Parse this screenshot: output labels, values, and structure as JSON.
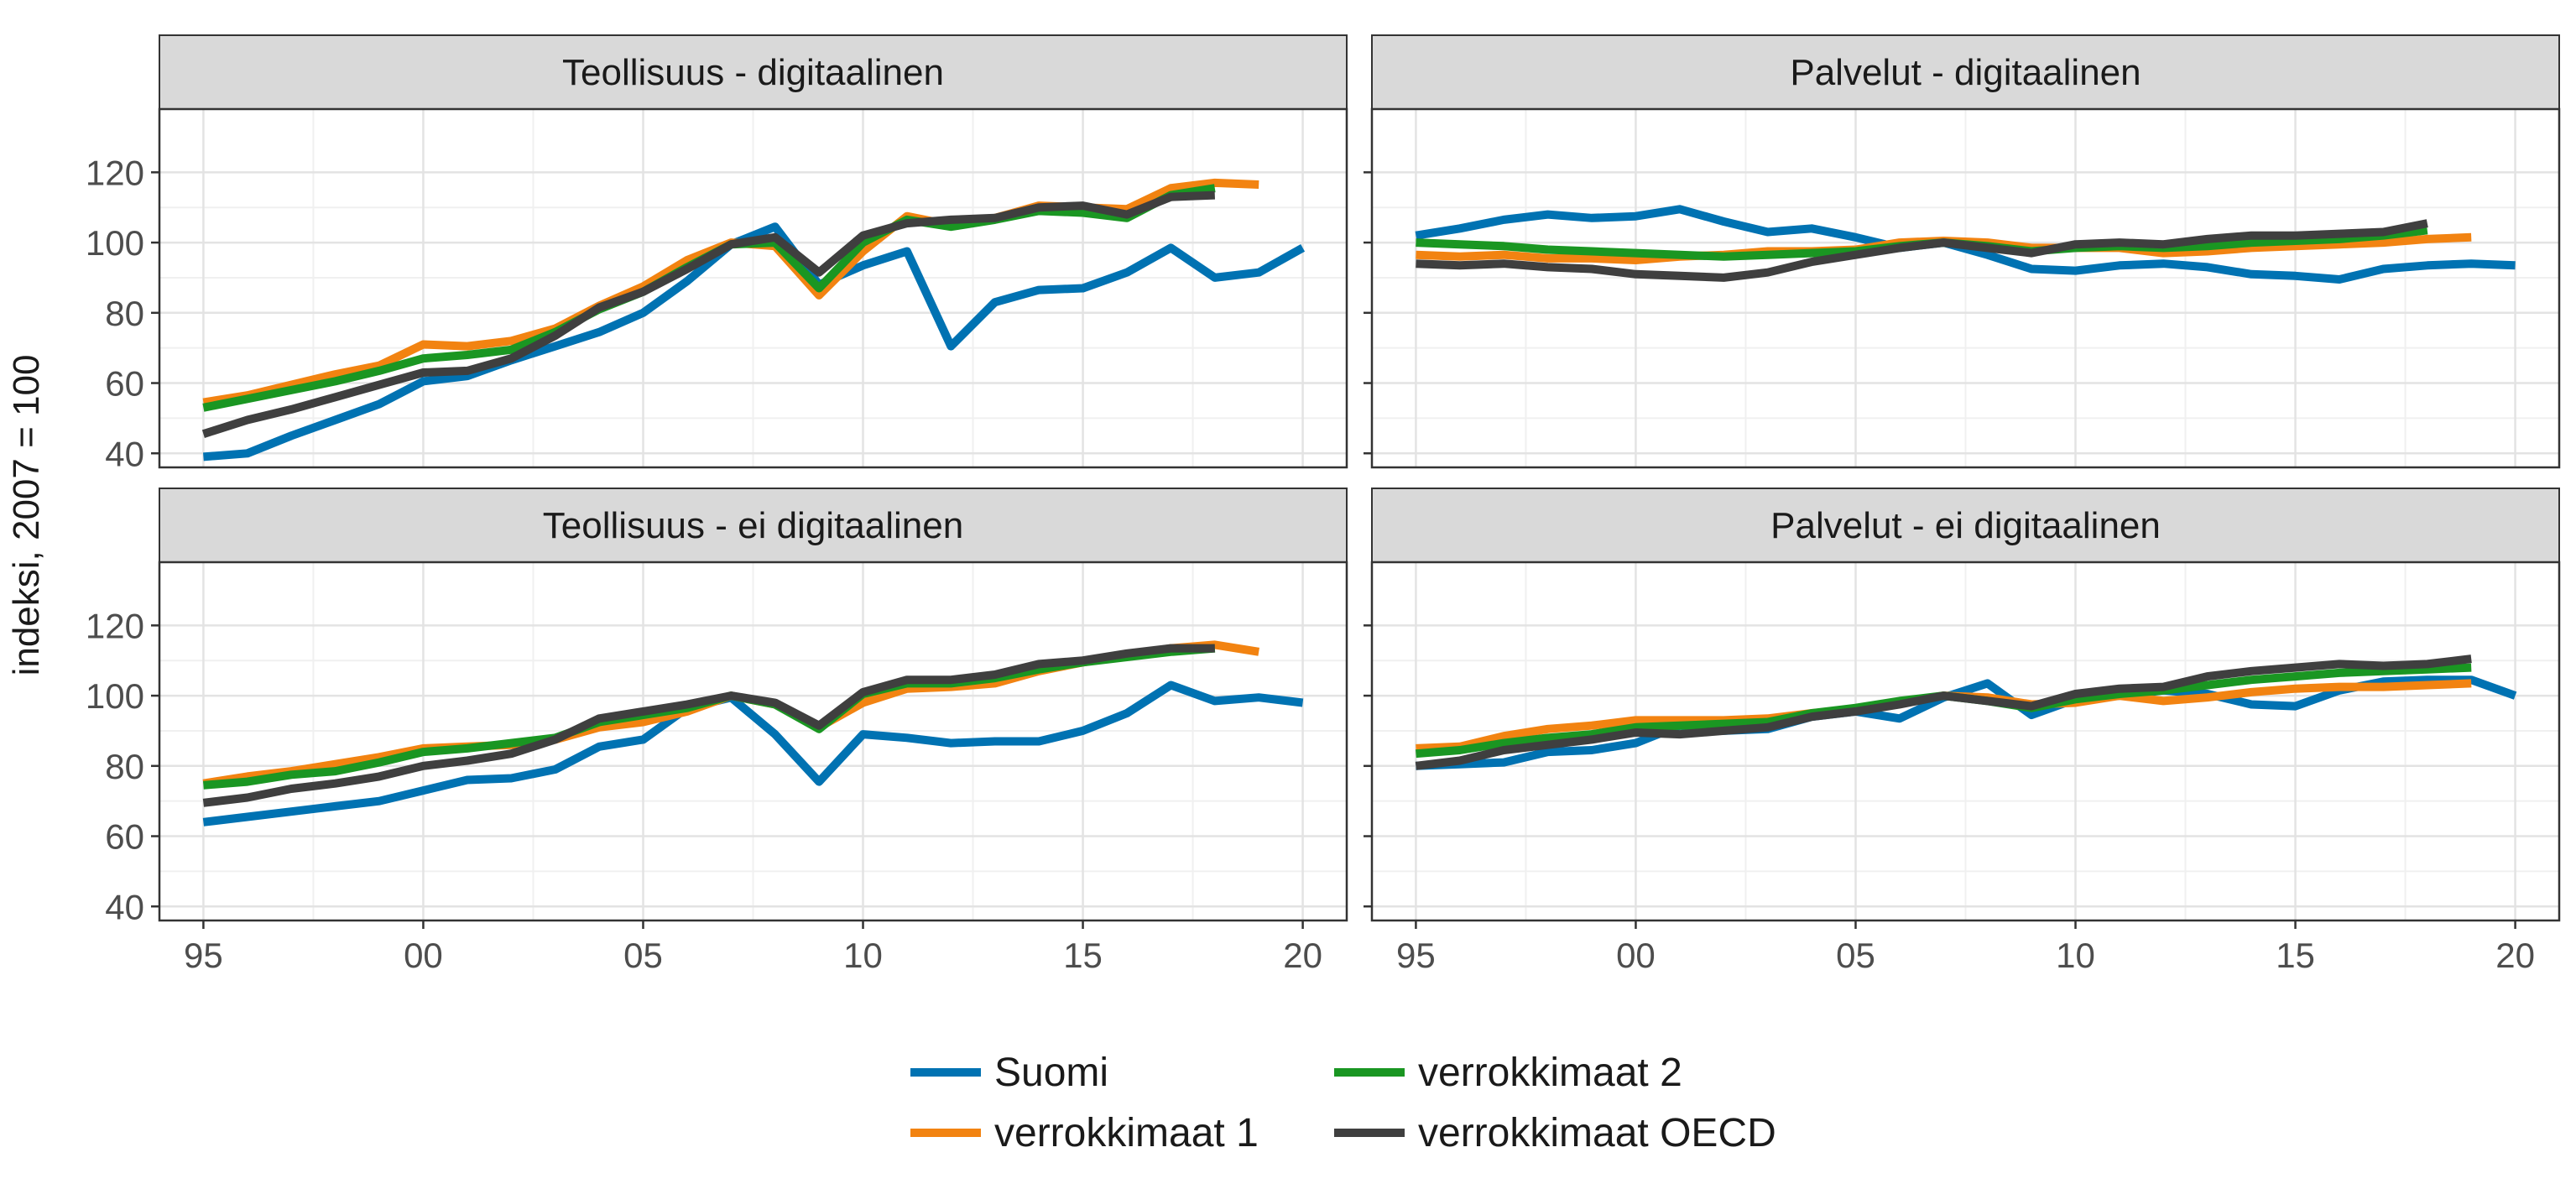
{
  "figure": {
    "ylabel": "indeksi, 2007 = 100",
    "legend": [
      {
        "label": "Suomi",
        "color": "#0072B2"
      },
      {
        "label": "verrokkimaat 1",
        "color": "#F28311"
      },
      {
        "label": "verrokkimaat 2",
        "color": "#1A9622"
      },
      {
        "label": "verrokkimaat OECD",
        "color": "#3F3F3F"
      }
    ]
  },
  "chart_data": [
    {
      "type": "line",
      "title": "Teollisuus - digitaalinen",
      "xlim": [
        1994,
        2021
      ],
      "ylim": [
        36,
        138
      ],
      "xticks": [
        1995,
        2000,
        2005,
        2010,
        2015,
        2020
      ],
      "xtick_labels": [
        "95",
        "00",
        "05",
        "10",
        "15",
        "20"
      ],
      "yticks": [
        40,
        60,
        80,
        100,
        120
      ],
      "ytick_labels": [
        "40",
        "60",
        "80",
        "100",
        "120"
      ],
      "grid": true,
      "legend_position": "bottom",
      "series": [
        {
          "name": "Suomi",
          "color": "#0072B2",
          "x": [
            1995,
            1996,
            1997,
            1998,
            1999,
            2000,
            2001,
            2002,
            2003,
            2004,
            2005,
            2006,
            2007,
            2008,
            2009,
            2010,
            2011,
            2012,
            2013,
            2014,
            2015,
            2016,
            2017,
            2018,
            2019,
            2020
          ],
          "y": [
            39,
            40,
            45,
            49.5,
            54,
            60.5,
            62,
            66.5,
            70.5,
            74.5,
            80,
            89,
            99.5,
            104.5,
            88,
            93.5,
            97.5,
            70.5,
            83,
            86.5,
            87,
            91.5,
            98.5,
            90,
            91.5,
            98.5
          ]
        },
        {
          "name": "verrokkimaat 1",
          "color": "#F28311",
          "x": [
            1995,
            1996,
            1997,
            1998,
            1999,
            2000,
            2001,
            2002,
            2003,
            2004,
            2005,
            2006,
            2007,
            2008,
            2009,
            2010,
            2011,
            2012,
            2013,
            2014,
            2015,
            2016,
            2017,
            2018,
            2019
          ],
          "y": [
            54.5,
            56.5,
            59.5,
            62.5,
            65,
            71,
            70.5,
            72,
            75.5,
            82,
            87.5,
            95,
            100,
            99,
            85,
            97.5,
            107.5,
            105,
            107,
            110.5,
            110,
            109.5,
            115.5,
            117,
            116.5
          ]
        },
        {
          "name": "verrokkimaat 2",
          "color": "#1A9622",
          "x": [
            1995,
            1996,
            1997,
            1998,
            1999,
            2000,
            2001,
            2002,
            2003,
            2004,
            2005,
            2006,
            2007,
            2008,
            2009,
            2010,
            2011,
            2012,
            2013,
            2014,
            2015,
            2016,
            2017,
            2018
          ],
          "y": [
            53,
            55.5,
            58,
            60.5,
            63.5,
            67,
            68,
            69.5,
            74.5,
            81,
            86,
            93,
            99.5,
            100,
            87,
            100,
            106.5,
            104.5,
            106.5,
            109,
            108.5,
            107,
            113.5,
            115.5
          ]
        },
        {
          "name": "verrokkimaat OECD",
          "color": "#3F3F3F",
          "x": [
            1995,
            1996,
            1997,
            1998,
            1999,
            2000,
            2001,
            2002,
            2003,
            2004,
            2005,
            2006,
            2007,
            2008,
            2009,
            2010,
            2011,
            2012,
            2013,
            2014,
            2015,
            2016,
            2017,
            2018
          ],
          "y": [
            45.5,
            49.5,
            52.5,
            56,
            59.5,
            63,
            63.5,
            67,
            73.5,
            81.5,
            86,
            92.5,
            99.5,
            101.5,
            91.5,
            102,
            105.5,
            106.5,
            107,
            110,
            110.5,
            108,
            113,
            113.5
          ]
        }
      ]
    },
    {
      "type": "line",
      "title": "Palvelut - digitaalinen",
      "xlim": [
        1994,
        2021
      ],
      "ylim": [
        36,
        138
      ],
      "xticks": [
        1995,
        2000,
        2005,
        2010,
        2015,
        2020
      ],
      "xtick_labels": [
        "95",
        "00",
        "05",
        "10",
        "15",
        "20"
      ],
      "yticks": [
        40,
        60,
        80,
        100,
        120
      ],
      "grid": true,
      "legend_position": "bottom",
      "series": [
        {
          "name": "Suomi",
          "color": "#0072B2",
          "x": [
            1995,
            1996,
            1997,
            1998,
            1999,
            2000,
            2001,
            2002,
            2003,
            2004,
            2005,
            2006,
            2007,
            2008,
            2009,
            2010,
            2011,
            2012,
            2013,
            2014,
            2015,
            2016,
            2017,
            2018,
            2019,
            2020
          ],
          "y": [
            102,
            104,
            106.5,
            108,
            107,
            107.5,
            109.5,
            106,
            103,
            104,
            101.5,
            98.5,
            100,
            96.5,
            92.5,
            92,
            93.5,
            94,
            93,
            91,
            90.5,
            89.5,
            92.5,
            93.5,
            94,
            93.5
          ]
        },
        {
          "name": "verrokkimaat 1",
          "color": "#F28311",
          "x": [
            1995,
            1996,
            1997,
            1998,
            1999,
            2000,
            2001,
            2002,
            2003,
            2004,
            2005,
            2006,
            2007,
            2008,
            2009,
            2010,
            2011,
            2012,
            2013,
            2014,
            2015,
            2016,
            2017,
            2018,
            2019
          ],
          "y": [
            96.5,
            96,
            96.5,
            95.5,
            95.5,
            95,
            96,
            96.5,
            97.5,
            97.5,
            98,
            100,
            100.5,
            100,
            98.5,
            98.5,
            98.5,
            97,
            97.5,
            98.5,
            99,
            99.5,
            100,
            101,
            101.5
          ]
        },
        {
          "name": "verrokkimaat 2",
          "color": "#1A9622",
          "x": [
            1995,
            1996,
            1997,
            1998,
            1999,
            2000,
            2001,
            2002,
            2003,
            2004,
            2005,
            2006,
            2007,
            2008,
            2009,
            2010,
            2011,
            2012,
            2013,
            2014,
            2015,
            2016,
            2017,
            2018
          ],
          "y": [
            100,
            99.5,
            99,
            98,
            97.5,
            97,
            96.5,
            96,
            96.5,
            97,
            97.5,
            99,
            100,
            99,
            97.5,
            98.5,
            99,
            98.5,
            99,
            100,
            100.5,
            101,
            102,
            103.5
          ]
        },
        {
          "name": "verrokkimaat OECD",
          "color": "#3F3F3F",
          "x": [
            1995,
            1996,
            1997,
            1998,
            1999,
            2000,
            2001,
            2002,
            2003,
            2004,
            2005,
            2006,
            2007,
            2008,
            2009,
            2010,
            2011,
            2012,
            2013,
            2014,
            2015,
            2016,
            2017,
            2018
          ],
          "y": [
            94,
            93.5,
            94,
            93,
            92.5,
            91,
            90.5,
            90,
            91.5,
            94.5,
            96.5,
            98.5,
            100,
            98.5,
            97,
            99.5,
            100,
            99.5,
            101,
            102,
            102,
            102.5,
            103,
            105.5
          ]
        }
      ]
    },
    {
      "type": "line",
      "title": "Teollisuus - ei digitaalinen",
      "xlim": [
        1994,
        2021
      ],
      "ylim": [
        36,
        138
      ],
      "xticks": [
        1995,
        2000,
        2005,
        2010,
        2015,
        2020
      ],
      "xtick_labels": [
        "95",
        "00",
        "05",
        "10",
        "15",
        "20"
      ],
      "yticks": [
        40,
        60,
        80,
        100,
        120
      ],
      "ytick_labels": [
        "40",
        "60",
        "80",
        "100",
        "120"
      ],
      "grid": true,
      "legend_position": "bottom",
      "series": [
        {
          "name": "Suomi",
          "color": "#0072B2",
          "x": [
            1995,
            1996,
            1997,
            1998,
            1999,
            2000,
            2001,
            2002,
            2003,
            2004,
            2005,
            2006,
            2007,
            2008,
            2009,
            2010,
            2011,
            2012,
            2013,
            2014,
            2015,
            2016,
            2017,
            2018,
            2019,
            2020
          ],
          "y": [
            64,
            65.5,
            67,
            68.5,
            70,
            73,
            76,
            76.5,
            79,
            85.5,
            87.5,
            96.5,
            99.5,
            89,
            75.5,
            89,
            88,
            86.5,
            87,
            87,
            90,
            95,
            103,
            98.5,
            99.5,
            98
          ]
        },
        {
          "name": "verrokkimaat 1",
          "color": "#F28311",
          "x": [
            1995,
            1996,
            1997,
            1998,
            1999,
            2000,
            2001,
            2002,
            2003,
            2004,
            2005,
            2006,
            2007,
            2008,
            2009,
            2010,
            2011,
            2012,
            2013,
            2014,
            2015,
            2016,
            2017,
            2018,
            2019
          ],
          "y": [
            75,
            77,
            78.5,
            80.5,
            82.5,
            85,
            85.5,
            86,
            87.5,
            91,
            92.5,
            95.5,
            100,
            97.5,
            91,
            98,
            102,
            102.5,
            103.5,
            107,
            109.5,
            111.5,
            113.5,
            114.5,
            112.5
          ]
        },
        {
          "name": "verrokkimaat 2",
          "color": "#1A9622",
          "x": [
            1995,
            1996,
            1997,
            1998,
            1999,
            2000,
            2001,
            2002,
            2003,
            2004,
            2005,
            2006,
            2007,
            2008,
            2009,
            2010,
            2011,
            2012,
            2013,
            2014,
            2015,
            2016,
            2017,
            2018
          ],
          "y": [
            74.5,
            75.5,
            77.5,
            78.5,
            81,
            84,
            85,
            86.5,
            88,
            92.5,
            94.5,
            96.5,
            100,
            97.5,
            90.5,
            100.5,
            103.5,
            103.5,
            105,
            107.5,
            109.5,
            111,
            112.5,
            113.5
          ]
        },
        {
          "name": "verrokkimaat OECD",
          "color": "#3F3F3F",
          "x": [
            1995,
            1996,
            1997,
            1998,
            1999,
            2000,
            2001,
            2002,
            2003,
            2004,
            2005,
            2006,
            2007,
            2008,
            2009,
            2010,
            2011,
            2012,
            2013,
            2014,
            2015,
            2016,
            2017,
            2018
          ],
          "y": [
            69.5,
            71,
            73.5,
            75,
            77,
            80,
            81.5,
            83.5,
            87.5,
            93.5,
            95.5,
            97.5,
            100,
            98,
            91.5,
            101,
            104.5,
            104.5,
            106,
            109,
            110,
            112,
            113.5,
            113.5
          ]
        }
      ]
    },
    {
      "type": "line",
      "title": "Palvelut - ei digitaalinen",
      "xlim": [
        1994,
        2021
      ],
      "ylim": [
        36,
        138
      ],
      "xticks": [
        1995,
        2000,
        2005,
        2010,
        2015,
        2020
      ],
      "xtick_labels": [
        "95",
        "00",
        "05",
        "10",
        "15",
        "20"
      ],
      "yticks": [
        40,
        60,
        80,
        100,
        120
      ],
      "grid": true,
      "legend_position": "bottom",
      "series": [
        {
          "name": "Suomi",
          "color": "#0072B2",
          "x": [
            1995,
            1996,
            1997,
            1998,
            1999,
            2000,
            2001,
            2002,
            2003,
            2004,
            2005,
            2006,
            2007,
            2008,
            2009,
            2010,
            2011,
            2012,
            2013,
            2014,
            2015,
            2016,
            2017,
            2018,
            2019,
            2020
          ],
          "y": [
            80,
            80.5,
            81,
            84,
            84.5,
            86.5,
            91.5,
            90,
            90.5,
            94,
            95.5,
            93.5,
            99.5,
            103.5,
            94.5,
            99,
            100,
            101.5,
            100.5,
            97.5,
            97,
            101.5,
            104,
            104.5,
            104.5,
            100
          ]
        },
        {
          "name": "verrokkimaat 1",
          "color": "#F28311",
          "x": [
            1995,
            1996,
            1997,
            1998,
            1999,
            2000,
            2001,
            2002,
            2003,
            2004,
            2005,
            2006,
            2007,
            2008,
            2009,
            2010,
            2011,
            2012,
            2013,
            2014,
            2015,
            2016,
            2017,
            2018,
            2019
          ],
          "y": [
            85,
            85.5,
            88.5,
            90.5,
            91.5,
            93,
            93,
            93,
            93.5,
            95,
            96,
            98,
            100,
            99.5,
            97.5,
            98,
            100,
            98.5,
            99.5,
            101,
            102,
            102.5,
            102.5,
            103,
            103.5
          ]
        },
        {
          "name": "verrokkimaat 2",
          "color": "#1A9622",
          "x": [
            1995,
            1996,
            1997,
            1998,
            1999,
            2000,
            2001,
            2002,
            2003,
            2004,
            2005,
            2006,
            2007,
            2008,
            2009,
            2010,
            2011,
            2012,
            2013,
            2014,
            2015,
            2016,
            2017,
            2018,
            2019
          ],
          "y": [
            83.5,
            84.5,
            86.5,
            88,
            89,
            91,
            91.5,
            92,
            92.5,
            95,
            96.5,
            98.5,
            100,
            98.5,
            96.5,
            99,
            100.5,
            101.5,
            103,
            104.5,
            105.5,
            106.5,
            107,
            107.5,
            108
          ]
        },
        {
          "name": "verrokkimaat OECD",
          "color": "#3F3F3F",
          "x": [
            1995,
            1996,
            1997,
            1998,
            1999,
            2000,
            2001,
            2002,
            2003,
            2004,
            2005,
            2006,
            2007,
            2008,
            2009,
            2010,
            2011,
            2012,
            2013,
            2014,
            2015,
            2016,
            2017,
            2018,
            2019
          ],
          "y": [
            80,
            81.5,
            84.5,
            86,
            87.5,
            89.5,
            89,
            90,
            91,
            94,
            95.5,
            97.5,
            100,
            98.5,
            97,
            100.5,
            102,
            102.5,
            105.5,
            107,
            108,
            109,
            108.5,
            109,
            110.5
          ]
        }
      ]
    }
  ]
}
